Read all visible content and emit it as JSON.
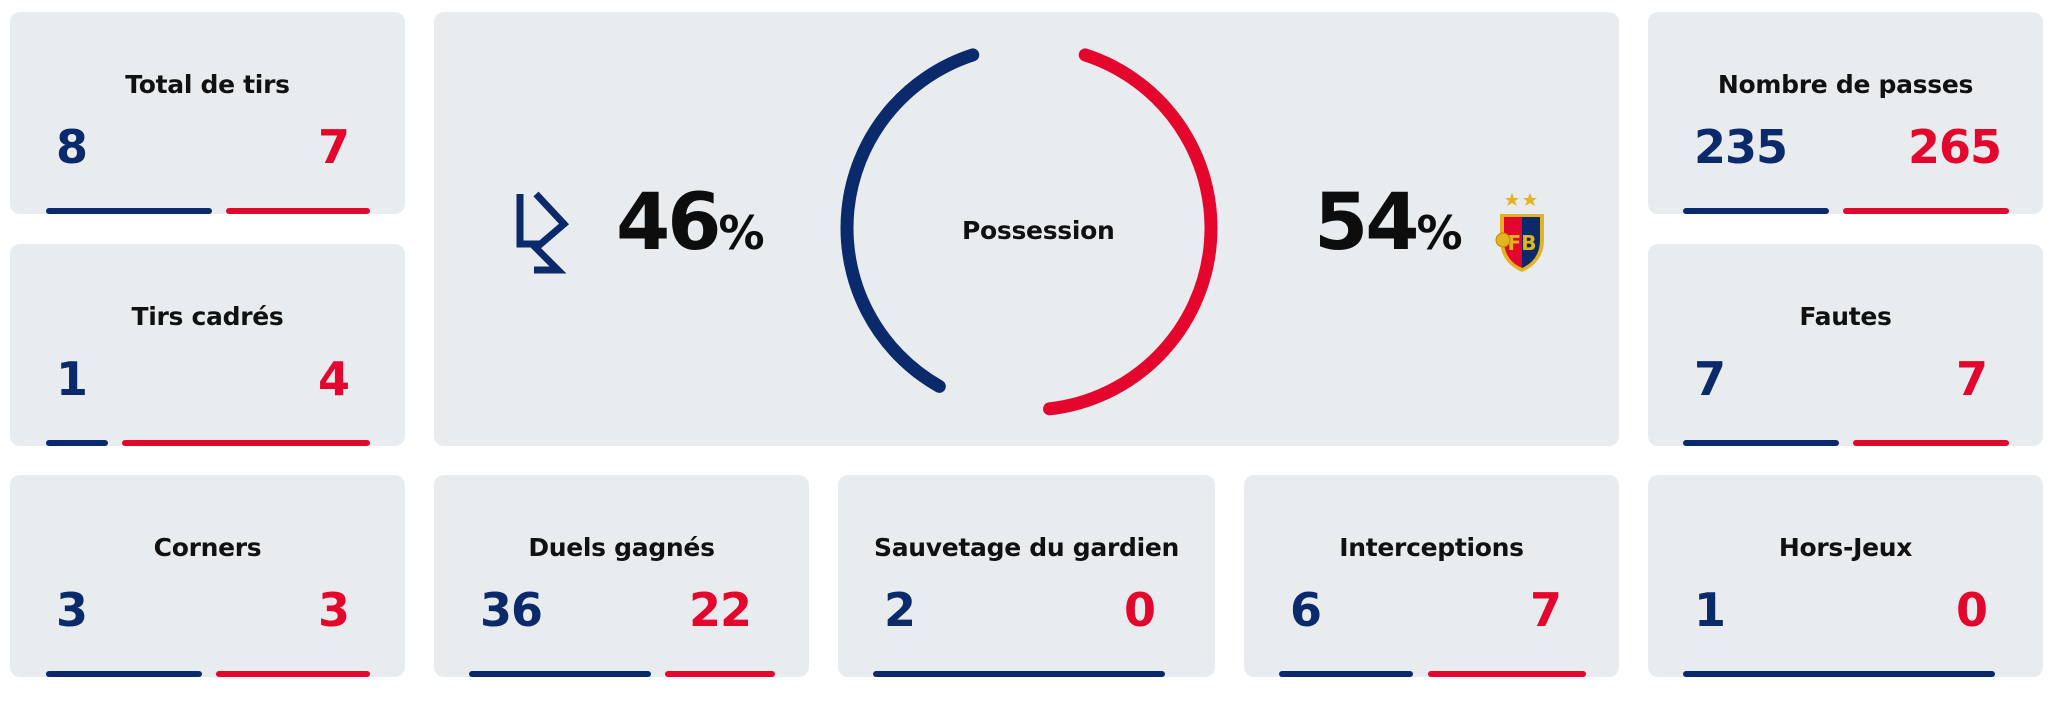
{
  "colors": {
    "home": "#0b2a6b",
    "away": "#e4062c",
    "card": "#e8ecef"
  },
  "possession": {
    "label": "Possession",
    "home_value": "46",
    "away_value": "54",
    "unit": "%",
    "home_fraction": 0.46,
    "away_fraction": 0.54,
    "home_logo": "lausanne-logo",
    "away_logo": "basel-crest"
  },
  "stats": {
    "total_shots": {
      "label": "Total de tirs",
      "home": "8",
      "away": "7",
      "home_share": 0.53,
      "away_share": 0.47
    },
    "shots_on_target": {
      "label": "Tirs cadrés",
      "home": "1",
      "away": "4",
      "home_share": 0.2,
      "away_share": 0.8
    },
    "corners": {
      "label": "Corners",
      "home": "3",
      "away": "3",
      "home_share": 0.5,
      "away_share": 0.5
    },
    "duels_won": {
      "label": "Duels gagnés",
      "home": "36",
      "away": "22",
      "home_share": 0.62,
      "away_share": 0.38
    },
    "saves": {
      "label": "Sauvetage du gardien",
      "home": "2",
      "away": "0",
      "home_share": 1.0,
      "away_share": 0.0
    },
    "interceptions": {
      "label": "Interceptions",
      "home": "6",
      "away": "7",
      "home_share": 0.46,
      "away_share": 0.54
    },
    "passes": {
      "label": "Nombre de passes",
      "home": "235",
      "away": "265",
      "home_share": 0.47,
      "away_share": 0.53
    },
    "fouls": {
      "label": "Fautes",
      "home": "7",
      "away": "7",
      "home_share": 0.5,
      "away_share": 0.5
    },
    "offsides": {
      "label": "Hors-Jeux",
      "home": "1",
      "away": "0",
      "home_share": 1.0,
      "away_share": 0.0
    }
  }
}
